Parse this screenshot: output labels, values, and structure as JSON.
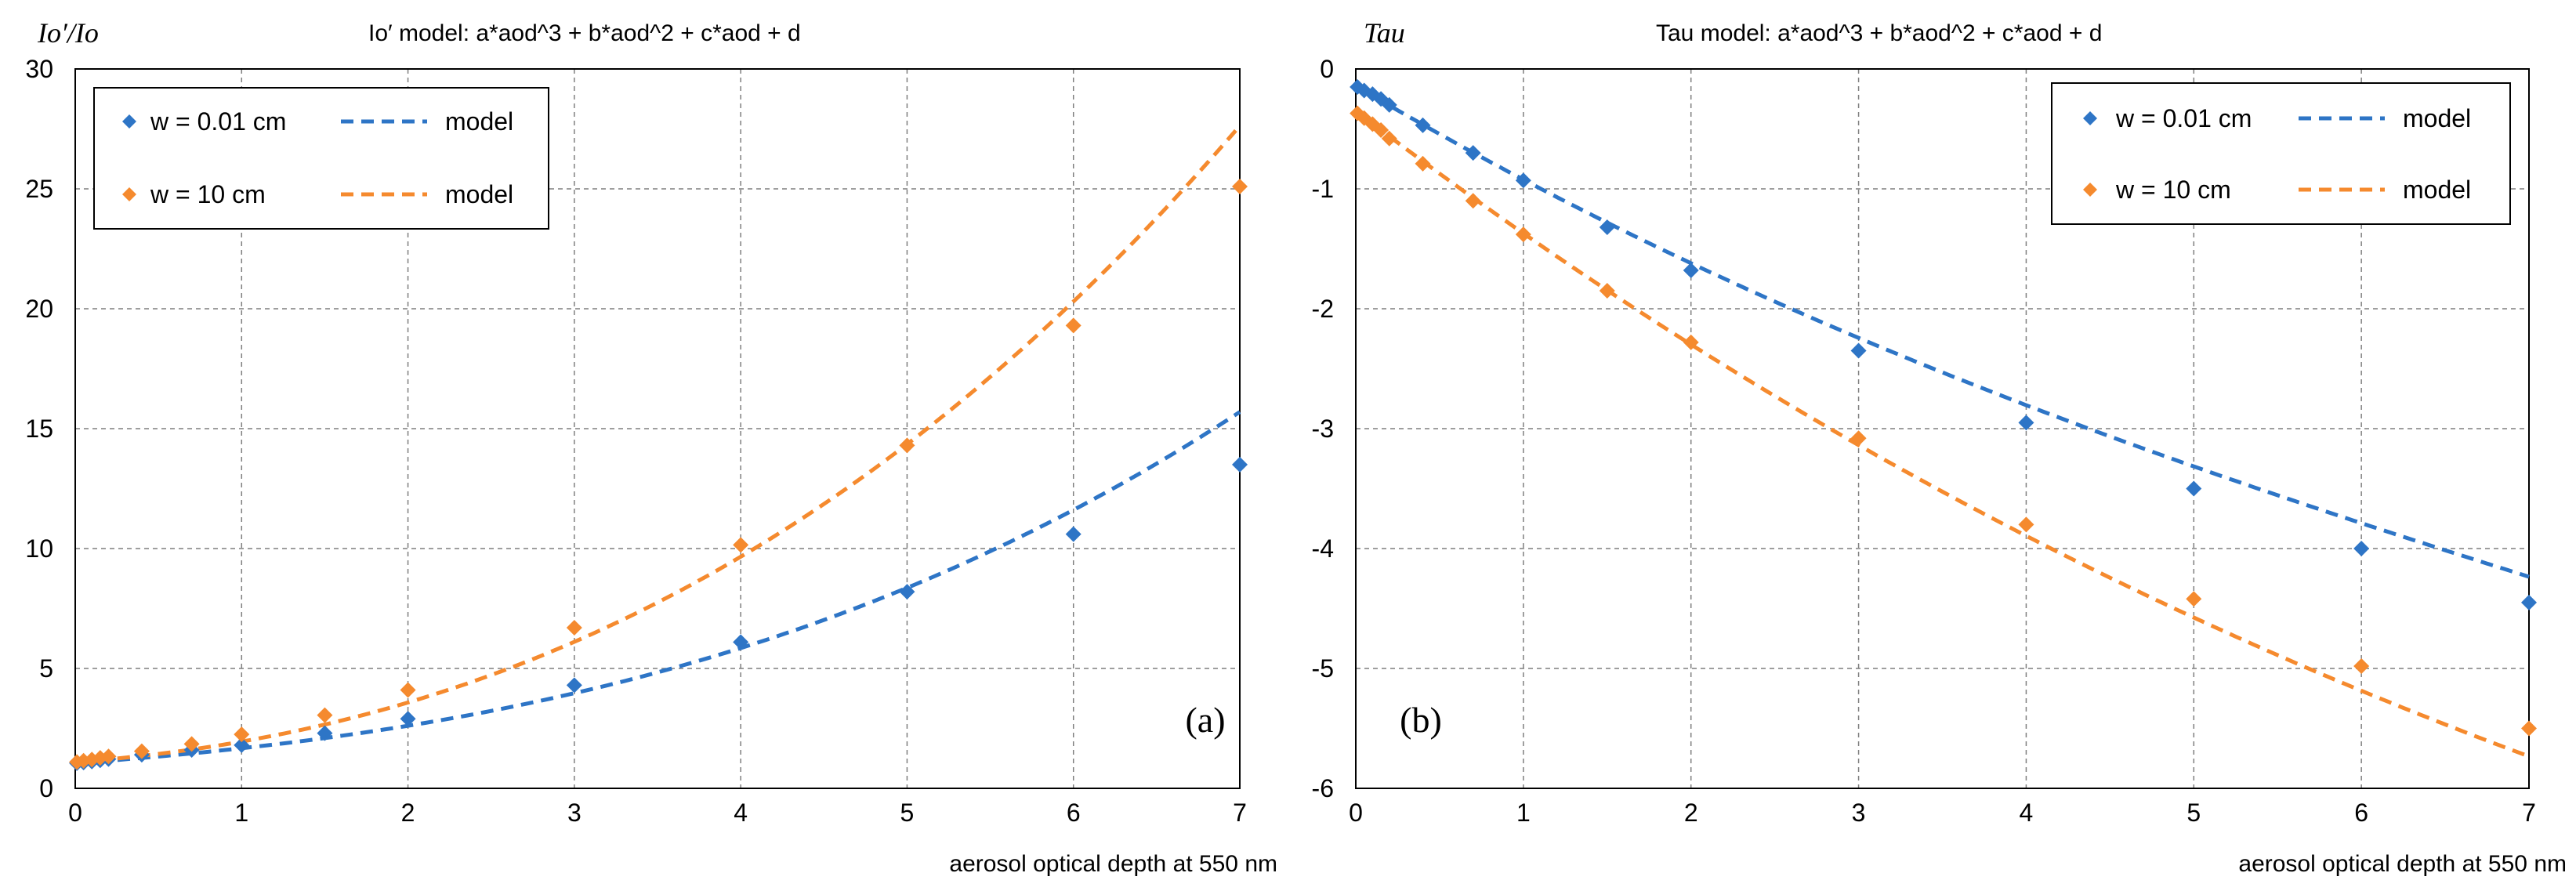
{
  "chart_data": [
    {
      "type": "scatter",
      "panel_label": "(a)",
      "ylabel": "Io′/Io",
      "title": "Io′ model:  a*aod^3 + b*aod^2 + c*aod + d",
      "xlabel": "aerosol optical depth at 550 nm",
      "xlim": [
        0,
        7
      ],
      "ylim": [
        0,
        30
      ],
      "x_ticks": [
        "0",
        "1",
        "2",
        "3",
        "4",
        "5",
        "6",
        "7"
      ],
      "y_ticks": [
        "0",
        "5",
        "10",
        "15",
        "20",
        "25",
        "30"
      ],
      "grid": true,
      "legend_position": "top-left",
      "legend": [
        {
          "marker_label": "w = 0.01 cm",
          "line_label": "model",
          "color": "#2E75C6"
        },
        {
          "marker_label": "w = 10 cm",
          "line_label": "model",
          "color": "#F58A2E"
        }
      ],
      "series": [
        {
          "name": "w = 0.01 cm",
          "color": "#2E75C6",
          "x": [
            0.01,
            0.05,
            0.1,
            0.15,
            0.2,
            0.4,
            0.7,
            1,
            1.5,
            2,
            3,
            4,
            5,
            6,
            7
          ],
          "y": [
            1.05,
            1.08,
            1.12,
            1.17,
            1.22,
            1.4,
            1.6,
            1.8,
            2.3,
            2.9,
            4.3,
            6.1,
            8.2,
            10.6,
            13.5
          ],
          "model": {
            "a": 0.0175,
            "b": 0.105,
            "c": 0.5,
            "d": 1.05
          }
        },
        {
          "name": "w = 10 cm",
          "color": "#F58A2E",
          "x": [
            0.01,
            0.05,
            0.1,
            0.15,
            0.2,
            0.4,
            0.7,
            1,
            1.5,
            2,
            3,
            4,
            5,
            6,
            7
          ],
          "y": [
            1.1,
            1.15,
            1.2,
            1.27,
            1.33,
            1.55,
            1.85,
            2.25,
            3.05,
            4.1,
            6.7,
            10.15,
            14.3,
            19.3,
            25.1
          ],
          "model": {
            "a": 0.02,
            "b": 0.33,
            "c": 0.5,
            "d": 1.1
          }
        }
      ],
      "annotations": []
    },
    {
      "type": "scatter",
      "panel_label": "(b)",
      "ylabel": "Tau",
      "title": "Tau model:  a*aod^3 + b*aod^2 + c*aod + d",
      "xlabel": "aerosol optical depth at 550 nm",
      "xlim": [
        0,
        7
      ],
      "ylim": [
        -6,
        0
      ],
      "x_ticks": [
        "0",
        "1",
        "2",
        "3",
        "4",
        "5",
        "6",
        "7"
      ],
      "y_ticks": [
        "0",
        "-1",
        "-2",
        "-3",
        "-4",
        "-5",
        "-6"
      ],
      "grid": true,
      "legend_position": "top-right",
      "legend": [
        {
          "marker_label": "w = 0.01 cm",
          "line_label": "model",
          "color": "#2E75C6"
        },
        {
          "marker_label": "w = 10 cm",
          "line_label": "model",
          "color": "#F58A2E"
        }
      ],
      "series": [
        {
          "name": "w = 0.01 cm",
          "color": "#2E75C6",
          "x": [
            0.01,
            0.05,
            0.1,
            0.15,
            0.2,
            0.4,
            0.7,
            1,
            1.5,
            2,
            3,
            4,
            5,
            6,
            7
          ],
          "y": [
            -0.15,
            -0.18,
            -0.21,
            -0.25,
            -0.3,
            -0.47,
            -0.7,
            -0.93,
            -1.32,
            -1.68,
            -2.35,
            -2.95,
            -3.5,
            -4.0,
            -4.45
          ],
          "model": {
            "a": -0.002,
            "b": 0.049,
            "c": -0.83,
            "d": -0.14
          }
        },
        {
          "name": "w = 10 cm",
          "color": "#F58A2E",
          "x": [
            0.01,
            0.05,
            0.1,
            0.15,
            0.2,
            0.4,
            0.7,
            1,
            1.5,
            2,
            3,
            4,
            5,
            6,
            7
          ],
          "y": [
            -0.37,
            -0.41,
            -0.46,
            -0.51,
            -0.58,
            -0.79,
            -1.1,
            -1.38,
            -1.85,
            -2.28,
            -3.08,
            -3.8,
            -4.42,
            -4.98,
            -5.5
          ],
          "model": {
            "a": -0.001,
            "b": 0.05,
            "c": -1.07,
            "d": -0.35
          }
        }
      ],
      "annotations": []
    }
  ]
}
